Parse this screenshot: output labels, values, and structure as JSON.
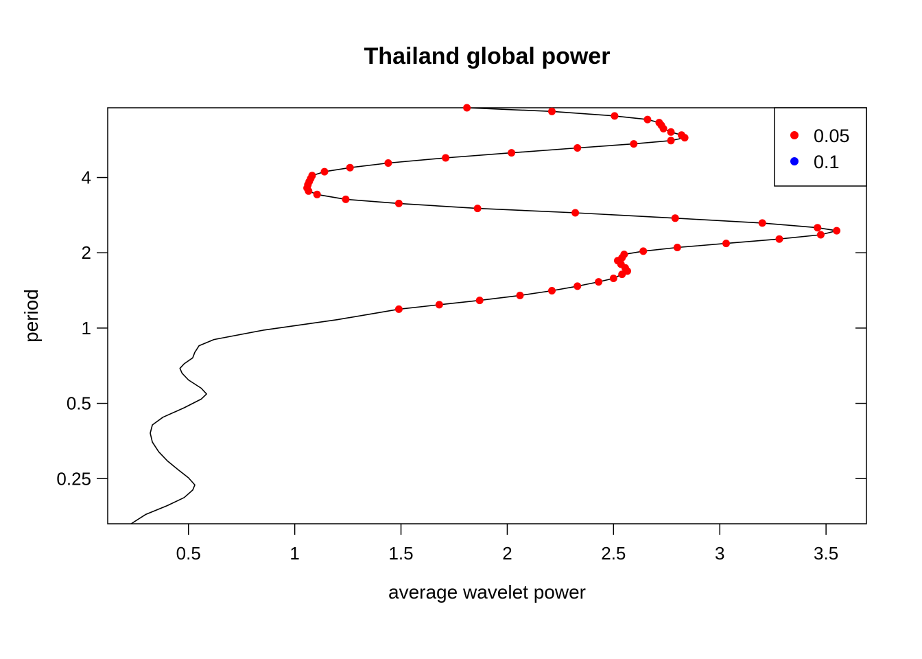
{
  "chart_data": {
    "type": "line",
    "title": "Thailand global power",
    "xlabel": "average wavelet power",
    "ylabel": "period",
    "y_scale": "log2",
    "xlim": [
      0.12,
      3.69
    ],
    "ylim": [
      0.165,
      7.6
    ],
    "x_ticks": [
      {
        "value": 0.5,
        "label": "0.5"
      },
      {
        "value": 1,
        "label": "1"
      },
      {
        "value": 1.5,
        "label": "1.5"
      },
      {
        "value": 2,
        "label": "2"
      },
      {
        "value": 2.5,
        "label": "2.5"
      },
      {
        "value": 3,
        "label": "3"
      },
      {
        "value": 3.5,
        "label": "3.5"
      }
    ],
    "y_ticks": [
      {
        "value": 0.25,
        "label": "0.25"
      },
      {
        "value": 0.5,
        "label": "0.5"
      },
      {
        "value": 1,
        "label": "1"
      },
      {
        "value": 2,
        "label": "2"
      },
      {
        "value": 4,
        "label": "4"
      }
    ],
    "grid": false,
    "legend": {
      "position": "top-right",
      "entries": [
        {
          "label": "0.05",
          "color": "#ff0000"
        },
        {
          "label": "0.1",
          "color": "#0000ff"
        }
      ]
    },
    "line": {
      "name": "global power",
      "color": "#000000",
      "points": [
        [
          0.23,
          0.165
        ],
        [
          0.3,
          0.18
        ],
        [
          0.4,
          0.195
        ],
        [
          0.48,
          0.21
        ],
        [
          0.52,
          0.225
        ],
        [
          0.53,
          0.236
        ],
        [
          0.5,
          0.252
        ],
        [
          0.45,
          0.272
        ],
        [
          0.4,
          0.295
        ],
        [
          0.36,
          0.32
        ],
        [
          0.33,
          0.35
        ],
        [
          0.32,
          0.38
        ],
        [
          0.33,
          0.41
        ],
        [
          0.38,
          0.44
        ],
        [
          0.48,
          0.48
        ],
        [
          0.56,
          0.52
        ],
        [
          0.585,
          0.545
        ],
        [
          0.56,
          0.575
        ],
        [
          0.5,
          0.62
        ],
        [
          0.47,
          0.66
        ],
        [
          0.46,
          0.69
        ],
        [
          0.48,
          0.72
        ],
        [
          0.52,
          0.76
        ],
        [
          0.53,
          0.8
        ],
        [
          0.55,
          0.85
        ],
        [
          0.62,
          0.9
        ],
        [
          0.85,
          0.98
        ],
        [
          1.2,
          1.08
        ],
        [
          1.49,
          1.19
        ]
      ]
    },
    "series": [
      {
        "name": "0.05",
        "color": "#ff0000",
        "x": [
          1.49,
          1.68,
          1.87,
          2.06,
          2.21,
          2.33,
          2.43,
          2.5,
          2.54,
          2.565,
          2.555,
          2.535,
          2.52,
          2.54,
          2.55,
          2.64,
          2.8,
          3.03,
          3.28,
          3.475,
          3.55,
          3.46,
          3.2,
          2.79,
          2.32,
          1.86,
          1.49,
          1.24,
          1.105,
          1.065,
          1.058,
          1.062,
          1.068,
          1.075,
          1.082,
          1.14,
          1.26,
          1.44,
          1.71,
          2.02,
          2.33,
          2.595,
          2.77,
          2.835,
          2.82,
          2.77,
          2.735,
          2.725,
          2.715,
          2.66,
          2.505,
          2.21,
          1.81
        ],
        "y": [
          1.19,
          1.24,
          1.29,
          1.35,
          1.41,
          1.47,
          1.53,
          1.58,
          1.64,
          1.69,
          1.74,
          1.8,
          1.86,
          1.91,
          1.97,
          2.03,
          2.1,
          2.18,
          2.27,
          2.36,
          2.45,
          2.52,
          2.63,
          2.75,
          2.89,
          3.01,
          3.15,
          3.27,
          3.42,
          3.53,
          3.63,
          3.74,
          3.85,
          3.96,
          4.07,
          4.22,
          4.38,
          4.57,
          4.79,
          5.02,
          5.25,
          5.45,
          5.62,
          5.77,
          5.91,
          6.08,
          6.27,
          6.47,
          6.63,
          6.82,
          7.05,
          7.35,
          7.6
        ]
      }
    ]
  }
}
